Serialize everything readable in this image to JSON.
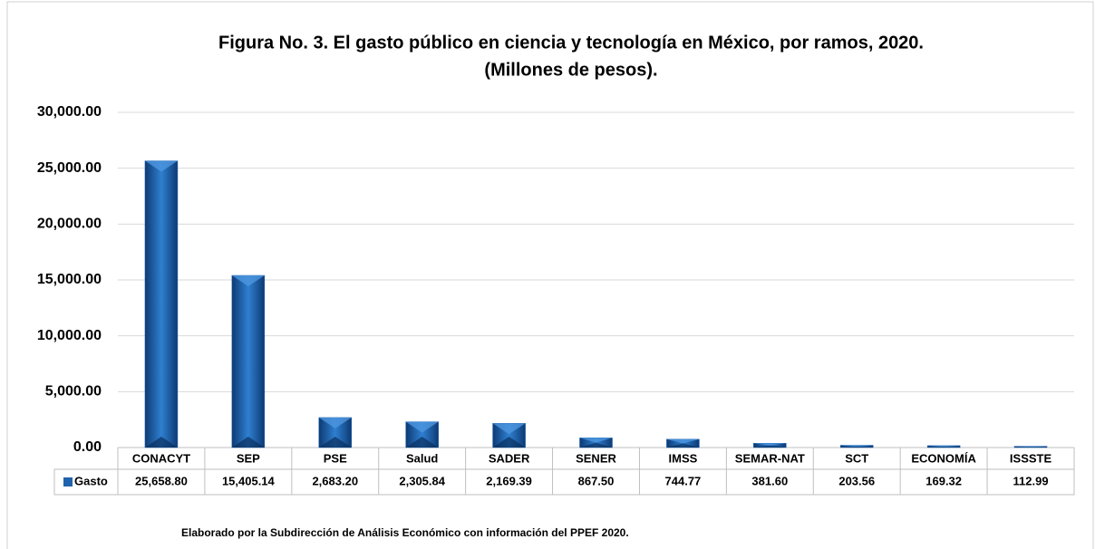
{
  "chart_data": {
    "type": "bar",
    "title": "Figura No. 3. El gasto público en ciencia y tecnología en México, por ramos, 2020.",
    "subtitle": "(Millones de pesos).",
    "categories": [
      "CONACYT",
      "SEP",
      "PSE",
      "Salud",
      "SADER",
      "SENER",
      "IMSS",
      "SEMAR-NAT",
      "SCT",
      "ECONOMÍA",
      "ISSSTE"
    ],
    "series": [
      {
        "name": "Gasto",
        "color": "#1f62ad",
        "values": [
          25658.8,
          15405.14,
          2683.2,
          2305.84,
          2169.39,
          867.5,
          744.77,
          381.6,
          203.56,
          169.32,
          112.99
        ],
        "value_labels": [
          "25,658.80",
          "15,405.14",
          "2,683.20",
          "2,305.84",
          "2,169.39",
          "867.50",
          "744.77",
          "381.60",
          "203.56",
          "169.32",
          "112.99"
        ]
      }
    ],
    "ylim": [
      0,
      30000
    ],
    "yticks": [
      {
        "value": 0,
        "label": "0.00"
      },
      {
        "value": 5000,
        "label": "5,000.00"
      },
      {
        "value": 10000,
        "label": "10,000.00"
      },
      {
        "value": 15000,
        "label": "15,000.00"
      },
      {
        "value": 20000,
        "label": "20,000.00"
      },
      {
        "value": 25000,
        "label": "25,000.00"
      },
      {
        "value": 30000,
        "label": "30,000.00"
      }
    ],
    "grid": true,
    "note": "Elaborado por la Subdirección de Análisis Económico con información del PPEF 2020."
  }
}
